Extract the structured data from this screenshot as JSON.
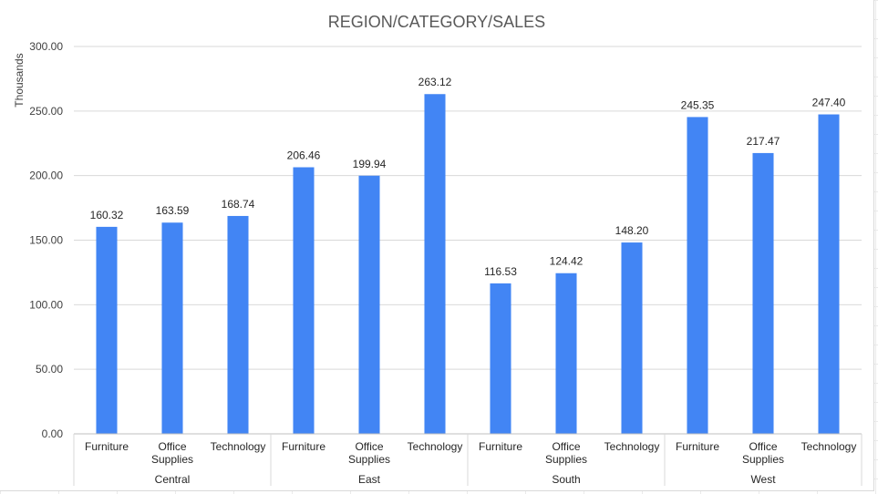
{
  "chart_data": {
    "type": "bar",
    "title": "REGION/CATEGORY/SALES",
    "ylabel": "Thousands",
    "xlabel": "",
    "ylim": [
      0,
      300
    ],
    "y_ticks": [
      "0.00",
      "50.00",
      "100.00",
      "150.00",
      "200.00",
      "250.00",
      "300.00"
    ],
    "grid": true,
    "bar_color": "#4285F4",
    "groups": [
      {
        "name": "Central",
        "categories": [
          "Furniture",
          "Office Supplies",
          "Technology"
        ],
        "values": [
          160.32,
          163.59,
          168.74
        ]
      },
      {
        "name": "East",
        "categories": [
          "Furniture",
          "Office Supplies",
          "Technology"
        ],
        "values": [
          206.46,
          199.94,
          263.12
        ]
      },
      {
        "name": "South",
        "categories": [
          "Furniture",
          "Office Supplies",
          "Technology"
        ],
        "values": [
          116.53,
          124.42,
          148.2
        ]
      },
      {
        "name": "West",
        "categories": [
          "Furniture",
          "Office Supplies",
          "Technology"
        ],
        "values": [
          245.35,
          217.47,
          247.4
        ]
      }
    ]
  }
}
